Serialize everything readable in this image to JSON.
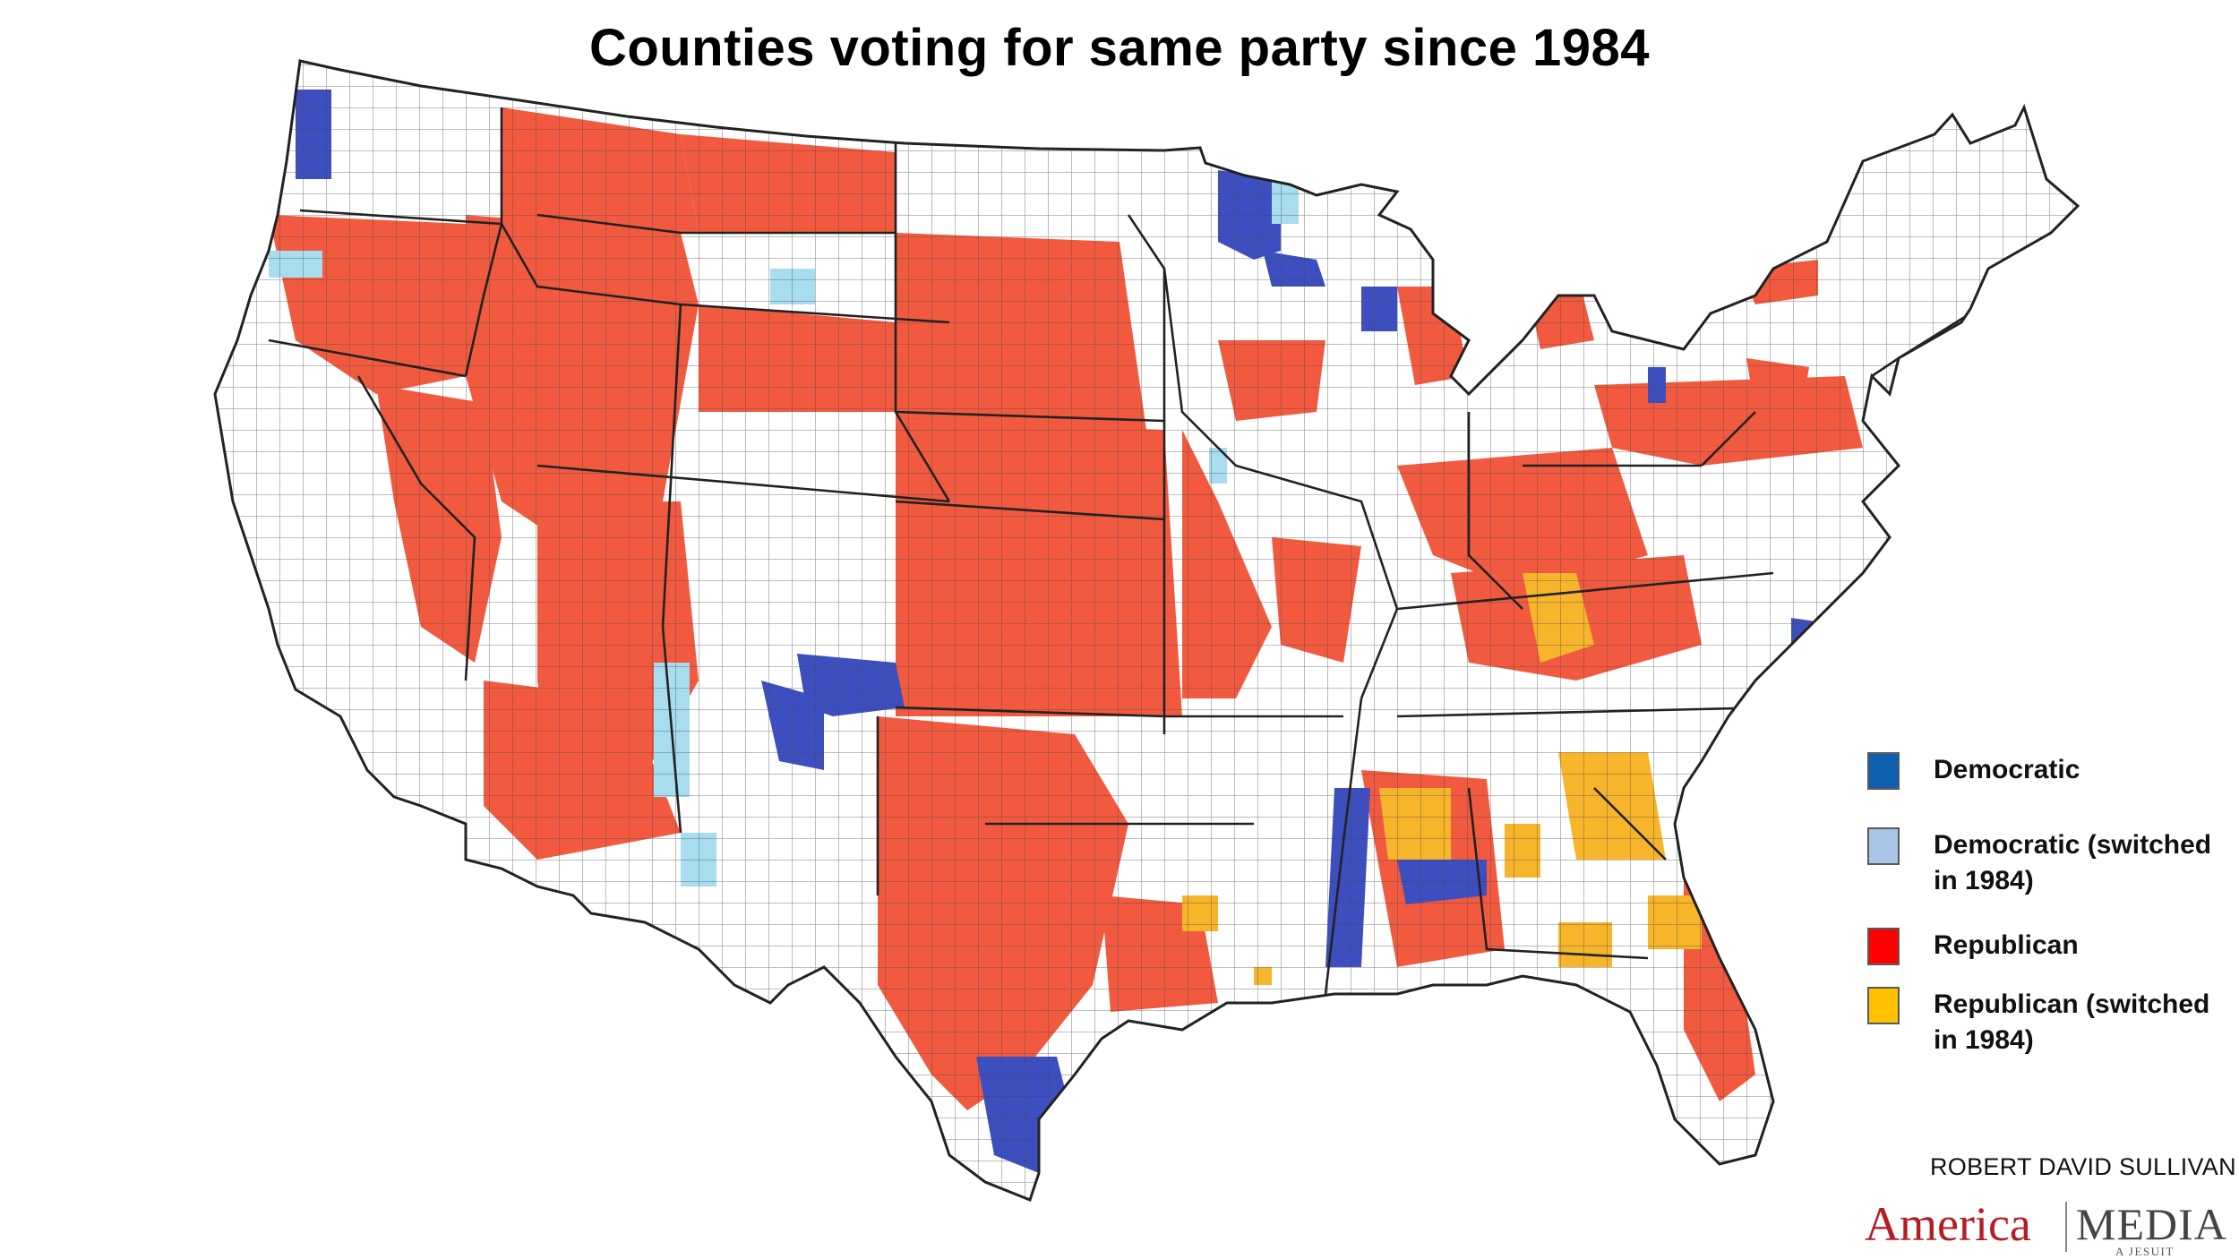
{
  "title": "Counties voting for same party since 1984",
  "colors": {
    "democratic": "#3d4fbf",
    "democratic_switched": "#a8ddf0",
    "republican": "#f25a40",
    "republican_switched": "#f7b52c",
    "county_outline": "#333333",
    "unchanged_county": "#ffffff"
  },
  "legend": {
    "items": [
      {
        "label": "Democratic",
        "color": "#0f5fb0"
      },
      {
        "label": "Democratic (switched in 1984)",
        "color": "#aac4e8"
      },
      {
        "label": "Republican",
        "color": "#ff0000"
      },
      {
        "label": "Republican (switched in 1984)",
        "color": "#ffc000"
      }
    ]
  },
  "credit": "ROBERT DAVID SULLIVAN",
  "logo": {
    "america": "America",
    "media": "MEDIA",
    "tagline": "A JESUIT MINISTRY"
  }
}
